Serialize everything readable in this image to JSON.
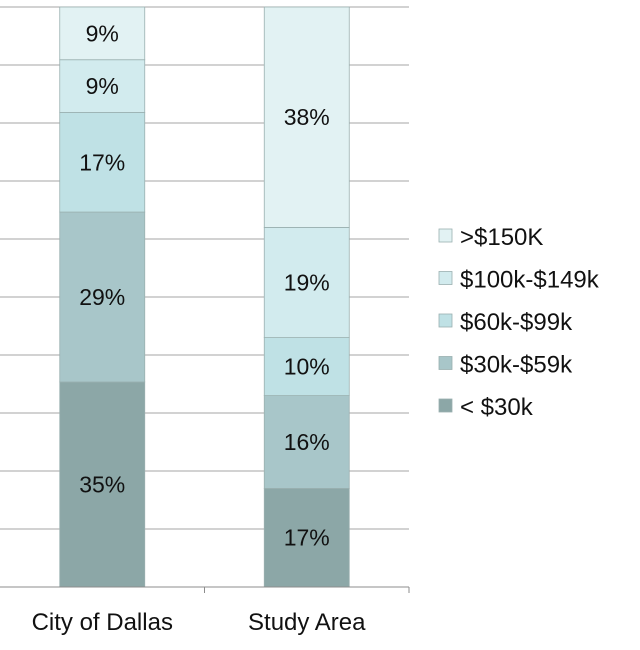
{
  "chart_data": {
    "type": "bar",
    "stacked": "percent",
    "categories": [
      "City of Dallas",
      "Study Area"
    ],
    "series": [
      {
        "name": "< $30k",
        "values": [
          35,
          17
        ],
        "color": "#8ca7a7"
      },
      {
        "name": "$30k-$59k",
        "values": [
          29,
          16
        ],
        "color": "#a8c6c9"
      },
      {
        "name": "$60k-$99k",
        "values": [
          17,
          10
        ],
        "color": "#bfe1e5"
      },
      {
        "name": "$100k-$149k",
        "values": [
          9,
          19
        ],
        "color": "#d2ebee"
      },
      {
        "name": ">$150K",
        "values": [
          9,
          38
        ],
        "color": "#e2f2f3"
      }
    ],
    "data_label_suffix": "%",
    "ylim": [
      0,
      100
    ],
    "grid": true,
    "legend": "right"
  }
}
